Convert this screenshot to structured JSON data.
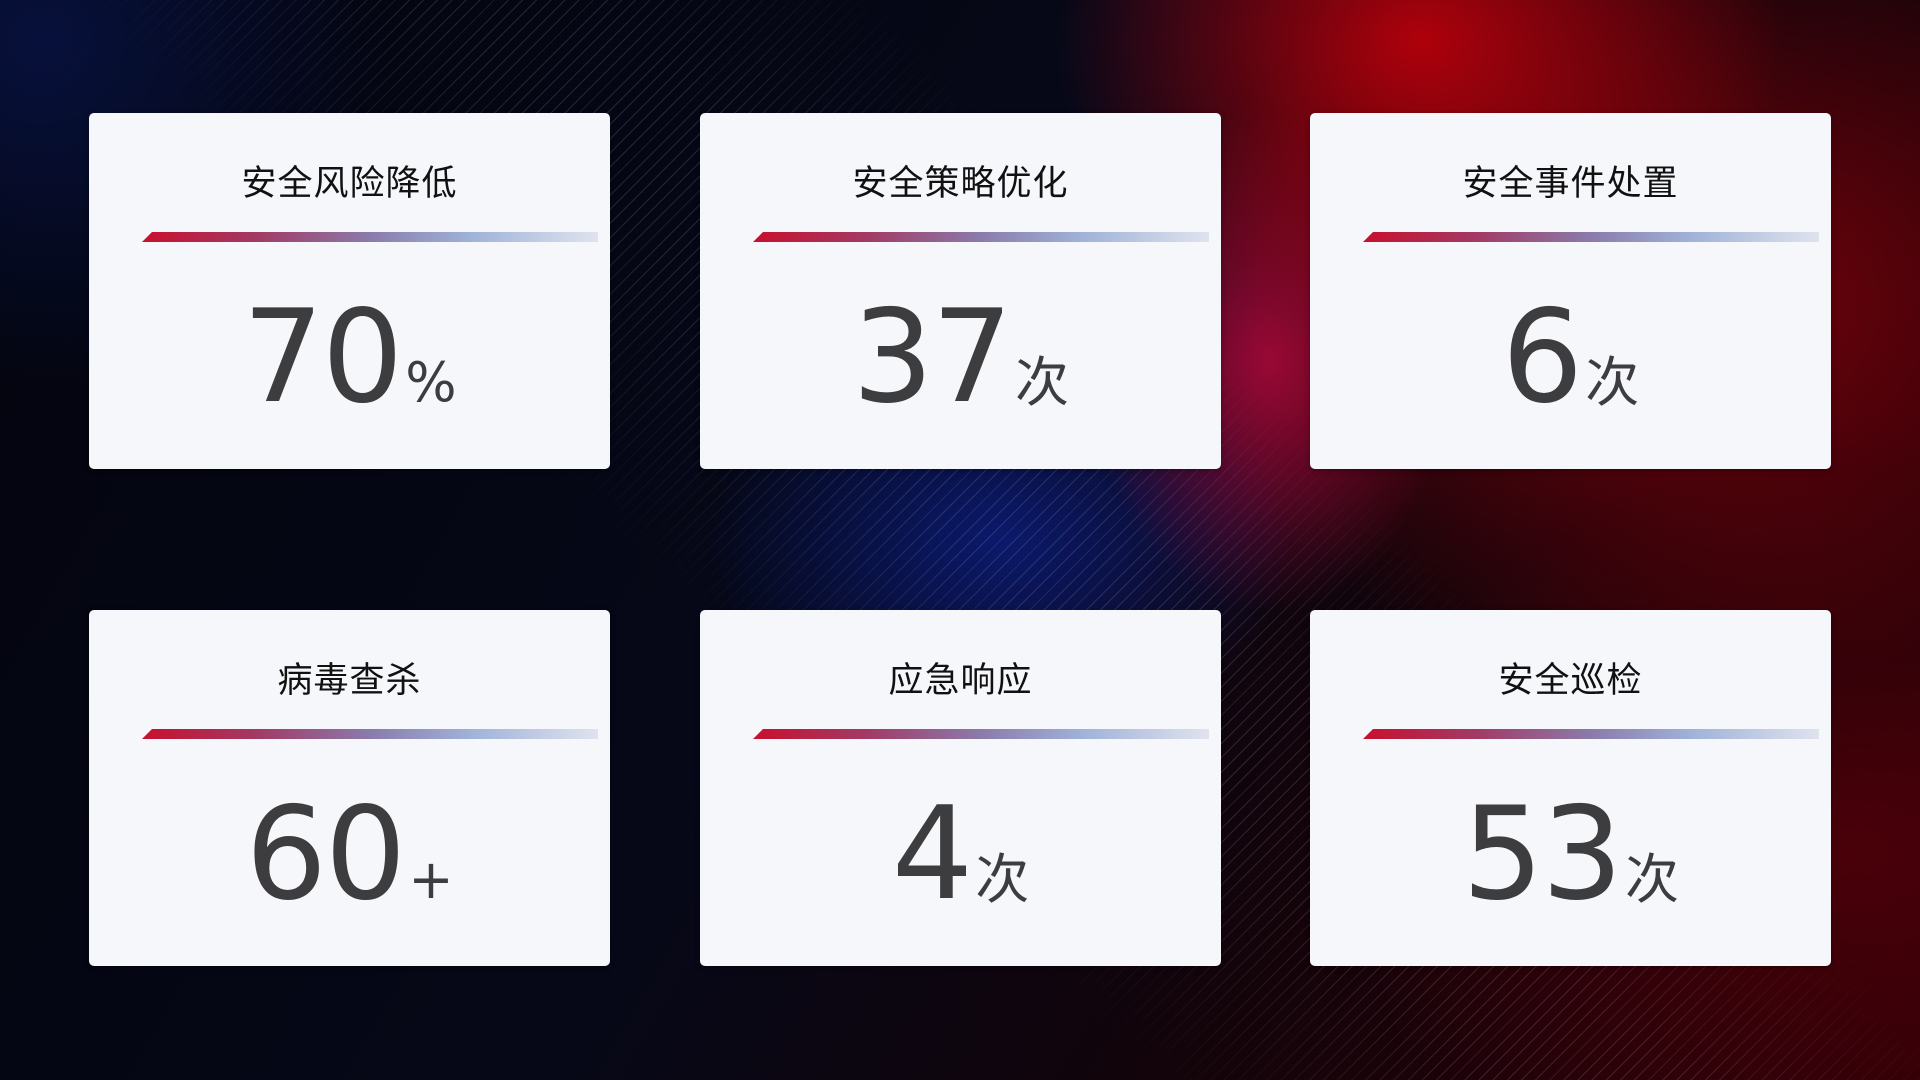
{
  "cards": [
    {
      "title": "安全风险降低",
      "value": "70",
      "unit": "%"
    },
    {
      "title": "安全策略优化",
      "value": "37",
      "unit": "次"
    },
    {
      "title": "安全事件处置",
      "value": "6",
      "unit": "次"
    },
    {
      "title": "病毒查杀",
      "value": "60",
      "unit": "+"
    },
    {
      "title": "应急响应",
      "value": "4",
      "unit": "次"
    },
    {
      "title": "安全巡检",
      "value": "53",
      "unit": "次"
    }
  ],
  "colors": {
    "accent_red": "#c8102e",
    "accent_blue": "#9fb2d8",
    "card_bg": "#f6f7fb",
    "value_text": "#3d3d3f"
  }
}
